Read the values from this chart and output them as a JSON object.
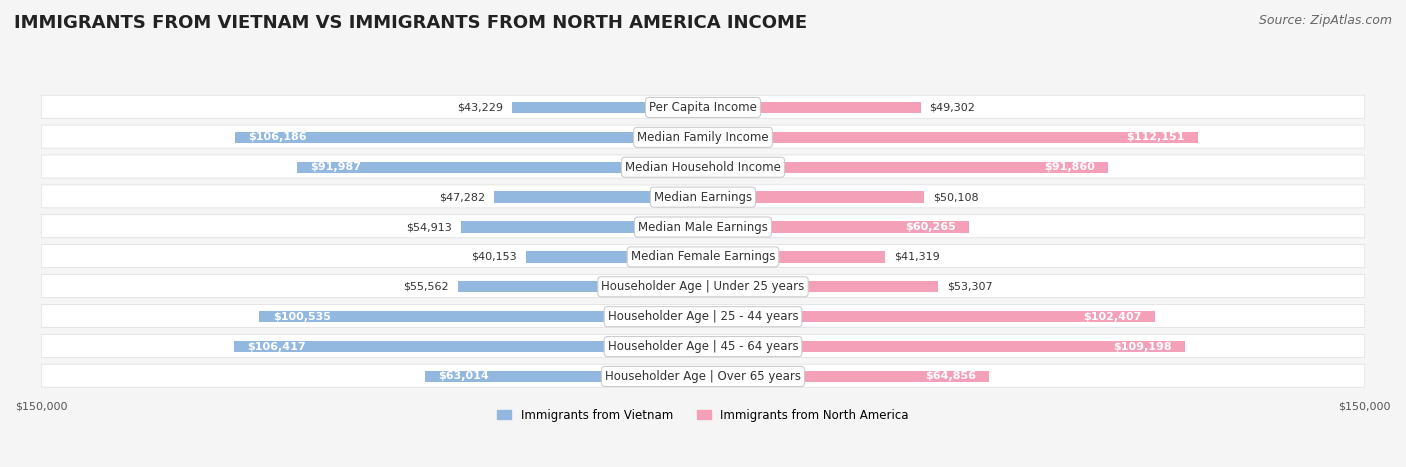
{
  "title": "IMMIGRANTS FROM VIETNAM VS IMMIGRANTS FROM NORTH AMERICA INCOME",
  "source": "Source: ZipAtlas.com",
  "categories": [
    "Per Capita Income",
    "Median Family Income",
    "Median Household Income",
    "Median Earnings",
    "Median Male Earnings",
    "Median Female Earnings",
    "Householder Age | Under 25 years",
    "Householder Age | 25 - 44 years",
    "Householder Age | 45 - 64 years",
    "Householder Age | Over 65 years"
  ],
  "vietnam_values": [
    43229,
    106186,
    91987,
    47282,
    54913,
    40153,
    55562,
    100535,
    106417,
    63014
  ],
  "north_america_values": [
    49302,
    112151,
    91860,
    50108,
    60265,
    41319,
    53307,
    102407,
    109198,
    64856
  ],
  "vietnam_color": "#93b8e0",
  "vietnam_color_dark": "#6fa0d4",
  "north_america_color": "#f4a0b8",
  "north_america_color_dark": "#f07090",
  "max_value": 150000,
  "legend_vietnam": "Immigrants from Vietnam",
  "legend_north_america": "Immigrants from North America",
  "background_color": "#f5f5f5",
  "row_background": "#ffffff",
  "label_box_color": "#ffffff",
  "title_fontsize": 13,
  "source_fontsize": 9,
  "label_fontsize": 8.5,
  "value_fontsize": 8,
  "axis_label_fontsize": 8
}
